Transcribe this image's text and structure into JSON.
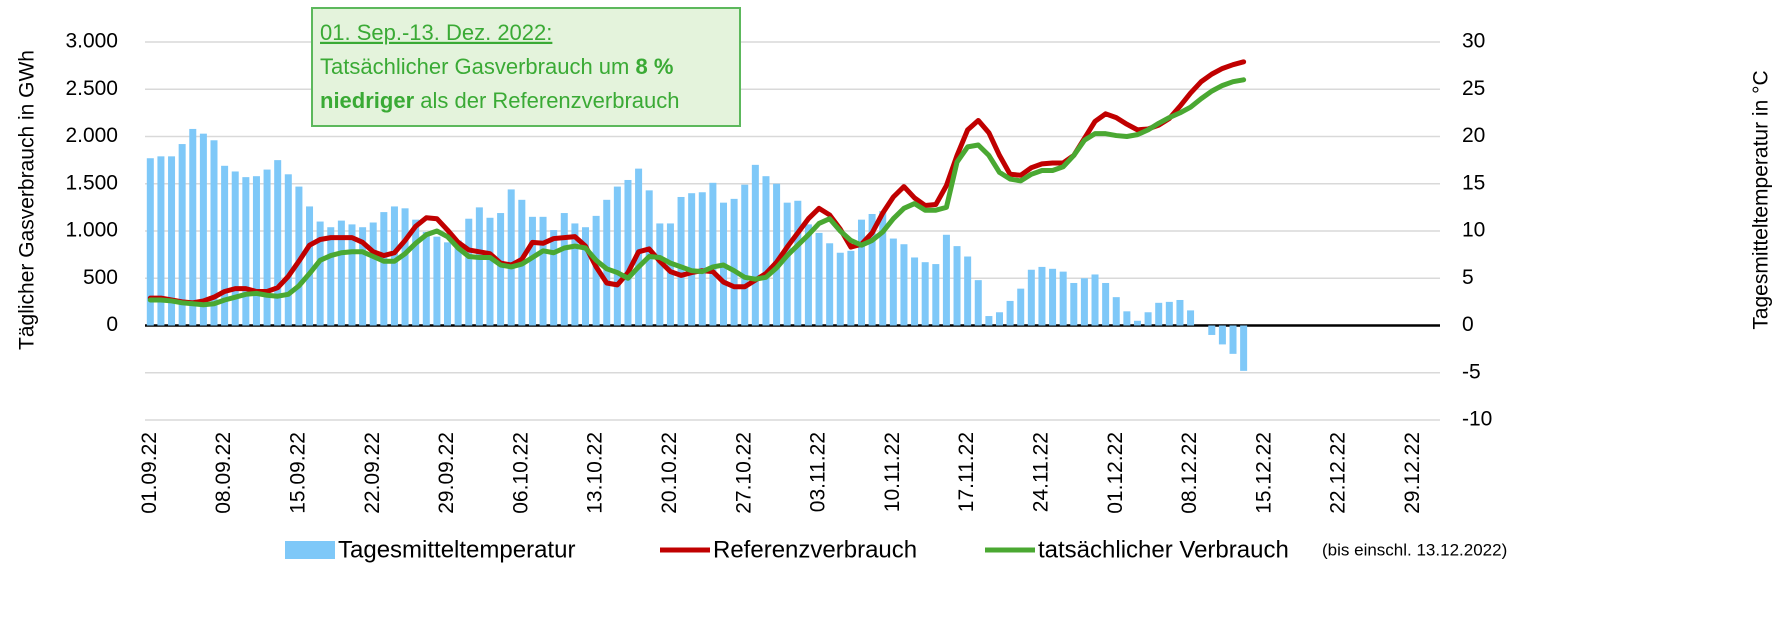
{
  "chart_data": {
    "type": "bar_line",
    "y_label": "Täglicher Gasverbrauch in GWh",
    "y2_label": "Tagesmitteltemperatur in °C",
    "ylim": [
      -1000,
      3000
    ],
    "yticks": [
      0,
      500,
      {
        "value": 1000,
        "label": "1.000"
      },
      {
        "value": 1500,
        "label": "1.500"
      },
      {
        "value": 2000,
        "label": "2.000"
      },
      {
        "value": 2500,
        "label": "2.500"
      },
      {
        "value": 3000,
        "label": "3.000"
      }
    ],
    "y2lim": [
      -10,
      30
    ],
    "y2ticks": [
      -10,
      -5,
      0,
      5,
      10,
      15,
      20,
      25,
      30
    ],
    "grid": true,
    "categories": [
      "01.09.22",
      null,
      null,
      null,
      null,
      null,
      null,
      "08.09.22",
      null,
      null,
      null,
      null,
      null,
      null,
      "15.09.22",
      null,
      null,
      null,
      null,
      null,
      null,
      "22.09.22",
      null,
      null,
      null,
      null,
      null,
      null,
      "29.09.22",
      null,
      null,
      null,
      null,
      null,
      null,
      "06.10.22",
      null,
      null,
      null,
      null,
      null,
      null,
      "13.10.22",
      null,
      null,
      null,
      null,
      null,
      null,
      "20.10.22",
      null,
      null,
      null,
      null,
      null,
      null,
      "27.10.22",
      null,
      null,
      null,
      null,
      null,
      null,
      "03.11.22",
      null,
      null,
      null,
      null,
      null,
      null,
      "10.11.22",
      null,
      null,
      null,
      null,
      null,
      null,
      "17.11.22",
      null,
      null,
      null,
      null,
      null,
      null,
      "24.11.22",
      null,
      null,
      null,
      null,
      null,
      null,
      "01.12.22",
      null,
      null,
      null,
      null,
      null,
      null,
      "08.12.22",
      null,
      null,
      null,
      null,
      null,
      null,
      "15.12.22",
      null,
      null,
      null,
      null,
      null,
      null,
      "22.12.22",
      null,
      null,
      null,
      null,
      null,
      null,
      "29.12.22",
      null,
      null
    ],
    "series": [
      {
        "name": "Tagesmitteltemperatur",
        "type": "bar",
        "axis": "y2",
        "color": "#7ec8f8",
        "values": [
          17.7,
          17.9,
          17.9,
          19.2,
          20.8,
          20.3,
          19.6,
          16.9,
          16.3,
          15.7,
          15.8,
          16.5,
          17.5,
          16.0,
          14.7,
          12.6,
          11.0,
          10.4,
          11.1,
          10.7,
          10.4,
          10.9,
          12.0,
          12.6,
          12.4,
          11.2,
          9.9,
          9.4,
          8.8,
          9.0,
          11.3,
          12.5,
          11.4,
          11.9,
          14.4,
          13.3,
          11.5,
          11.5,
          10.1,
          11.9,
          10.8,
          10.4,
          11.6,
          13.3,
          14.7,
          15.4,
          16.6,
          14.3,
          10.8,
          10.8,
          13.6,
          14.0,
          14.1,
          15.1,
          13.0,
          13.4,
          14.9,
          17.0,
          15.8,
          15.0,
          13.0,
          13.2,
          10.7,
          9.8,
          8.7,
          7.7,
          7.9,
          11.2,
          11.8,
          12.1,
          9.2,
          8.6,
          7.2,
          6.7,
          6.5,
          9.6,
          8.4,
          7.3,
          4.8,
          1.0,
          1.4,
          2.6,
          3.9,
          5.9,
          6.2,
          6.0,
          5.7,
          4.5,
          5.0,
          5.4,
          4.5,
          3.0,
          1.5,
          0.5,
          1.4,
          2.4,
          2.5,
          2.7,
          1.6,
          0,
          -1.0,
          -2.0,
          -3.0,
          -4.8,
          null,
          null,
          null,
          null,
          null,
          null,
          null,
          null,
          null,
          null,
          null,
          null,
          null,
          null,
          null,
          null,
          null,
          null
        ]
      },
      {
        "name": "Referenzverbrauch",
        "type": "line",
        "color": "#c00000",
        "values": [
          290,
          290,
          270,
          250,
          240,
          260,
          300,
          360,
          390,
          390,
          360,
          360,
          400,
          520,
          680,
          850,
          910,
          930,
          930,
          930,
          880,
          780,
          740,
          770,
          900,
          1050,
          1140,
          1130,
          1010,
          880,
          800,
          780,
          760,
          660,
          640,
          700,
          880,
          870,
          920,
          930,
          940,
          840,
          620,
          450,
          430,
          560,
          780,
          810,
          680,
          570,
          530,
          560,
          580,
          570,
          460,
          410,
          410,
          480,
          550,
          670,
          830,
          980,
          1130,
          1240,
          1170,
          1020,
          830,
          860,
          980,
          1190,
          1360,
          1470,
          1350,
          1270,
          1280,
          1480,
          1800,
          2070,
          2170,
          2040,
          1800,
          1600,
          1590,
          1670,
          1710,
          1720,
          1720,
          1800,
          1980,
          2160,
          2240,
          2200,
          2130,
          2070,
          2080,
          2120,
          2190,
          2320,
          2460,
          2580,
          2660,
          2720,
          2760,
          2790,
          null,
          null,
          null,
          null,
          null,
          null,
          null,
          null,
          null,
          null,
          null,
          null,
          null,
          null,
          null,
          null,
          null,
          null
        ]
      },
      {
        "name": "tatsächlicher Verbrauch",
        "type": "line",
        "color": "#4aa832",
        "values": [
          270,
          270,
          260,
          240,
          230,
          220,
          230,
          270,
          300,
          330,
          340,
          320,
          310,
          330,
          420,
          550,
          690,
          740,
          770,
          780,
          780,
          730,
          680,
          680,
          760,
          870,
          960,
          1000,
          940,
          820,
          730,
          720,
          720,
          640,
          620,
          650,
          720,
          790,
          770,
          820,
          840,
          820,
          690,
          600,
          560,
          500,
          620,
          730,
          720,
          660,
          620,
          580,
          570,
          620,
          640,
          580,
          510,
          490,
          510,
          610,
          740,
          850,
          960,
          1080,
          1130,
          1000,
          900,
          850,
          900,
          990,
          1130,
          1240,
          1290,
          1220,
          1220,
          1250,
          1730,
          1890,
          1910,
          1800,
          1620,
          1550,
          1530,
          1600,
          1640,
          1640,
          1680,
          1800,
          1960,
          2030,
          2030,
          2010,
          2000,
          2020,
          2070,
          2140,
          2200,
          2250,
          2310,
          2400,
          2480,
          2540,
          2580,
          2600,
          null,
          null,
          null,
          null,
          null,
          null,
          null,
          null,
          null,
          null,
          null,
          null,
          null,
          null,
          null,
          null,
          null,
          null
        ]
      }
    ],
    "legend_note": "(bis einschl. 13.12.2022)",
    "annotation": {
      "heading": "01. Sep.-13. Dez. 2022:",
      "line2": [
        "Tatsächlicher Gasverbrauch um ",
        "8 %"
      ],
      "line3": [
        "niedriger",
        " als der Referenzverbrauch"
      ]
    }
  }
}
